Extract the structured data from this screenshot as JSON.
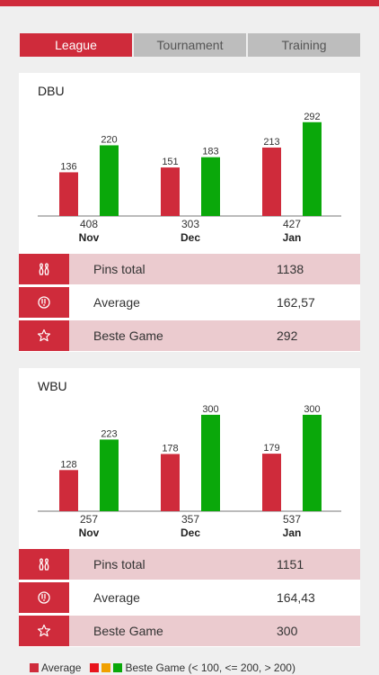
{
  "tabs": [
    {
      "label": "League",
      "active": true
    },
    {
      "label": "Tournament",
      "active": false
    },
    {
      "label": "Training",
      "active": false
    }
  ],
  "colors": {
    "brand": "#cf2b3b",
    "average_bar": "#cf2b3b",
    "best_green": "#0aa80a",
    "best_red": "#e8141c",
    "best_orange": "#f0a000",
    "row_shade": "#ebcbcf"
  },
  "legend": {
    "average_label": "Average",
    "best_label": "Beste Game (< 100, <= 200, > 200)"
  },
  "sections": [
    {
      "title": "DBU",
      "stats": [
        {
          "icon": "bowling-pins-icon",
          "label": "Pins total",
          "value": "1138"
        },
        {
          "icon": "bowling-ball-icon",
          "label": "Average",
          "value": "162,57"
        },
        {
          "icon": "star-icon",
          "label": "Beste Game",
          "value": "292"
        }
      ],
      "chart_data": {
        "type": "bar",
        "categories": [
          "Nov",
          "Dec",
          "Jan"
        ],
        "totals": [
          "408",
          "303",
          "427"
        ],
        "series": [
          {
            "name": "Average",
            "values": [
              136,
              151,
              213
            ]
          },
          {
            "name": "Beste Game",
            "values": [
              220,
              183,
              292
            ]
          }
        ]
      }
    },
    {
      "title": "WBU",
      "stats": [
        {
          "icon": "bowling-pins-icon",
          "label": "Pins total",
          "value": "1151"
        },
        {
          "icon": "bowling-ball-icon",
          "label": "Average",
          "value": "164,43"
        },
        {
          "icon": "star-icon",
          "label": "Beste Game",
          "value": "300"
        }
      ],
      "chart_data": {
        "type": "bar",
        "categories": [
          "Nov",
          "Dec",
          "Jan"
        ],
        "totals": [
          "257",
          "357",
          "537"
        ],
        "series": [
          {
            "name": "Average",
            "values": [
              128,
              178,
              179
            ]
          },
          {
            "name": "Beste Game",
            "values": [
              223,
              300,
              300
            ]
          }
        ]
      }
    }
  ]
}
